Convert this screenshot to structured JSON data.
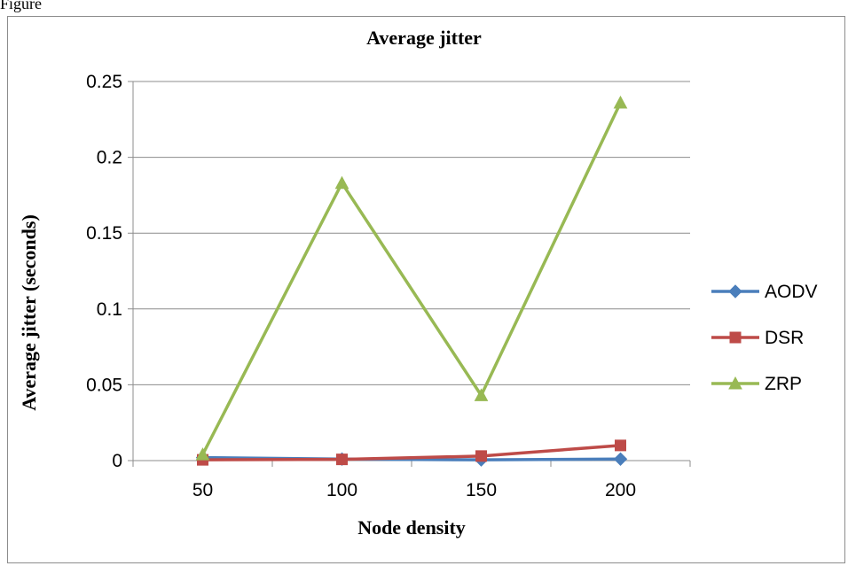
{
  "caption": "Figure",
  "chart_data": {
    "type": "line",
    "title": "Average jitter",
    "xlabel": "Node density",
    "ylabel": "Average jitter (seconds)",
    "categories": [
      "50",
      "100",
      "150",
      "200"
    ],
    "ylim": [
      0,
      0.25
    ],
    "yticks": [
      "0",
      "0.05",
      "0.1",
      "0.15",
      "0.2",
      "0.25"
    ],
    "grid": true,
    "legend_position": "right",
    "series": [
      {
        "name": "AODV",
        "values": [
          0.002,
          0.001,
          0.0005,
          0.001
        ],
        "color": "#4a7ebb",
        "marker": "diamond"
      },
      {
        "name": "DSR",
        "values": [
          0.0005,
          0.0008,
          0.003,
          0.01
        ],
        "color": "#be4b48",
        "marker": "square"
      },
      {
        "name": "ZRP",
        "values": [
          0.004,
          0.183,
          0.043,
          0.236
        ],
        "color": "#98b954",
        "marker": "triangle"
      }
    ]
  }
}
